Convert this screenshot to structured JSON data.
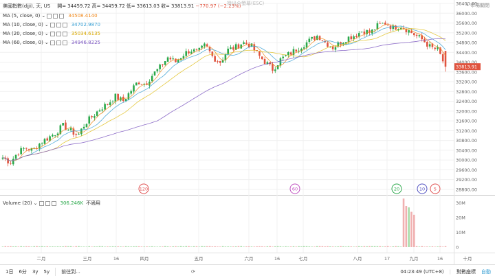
{
  "header": {
    "symbol": "美國指數(djji), 天, US",
    "open_label": "開=",
    "open": "34459.72",
    "high_label": "高=",
    "high": "34459.72",
    "low_label": "低=",
    "low": "33613.03",
    "close_label": "收=",
    "close": "33813.91",
    "change": "−770.97 (−2.23%)",
    "watermark": "撥出全螢幕(ESC)",
    "market_status": "• 市場關閉"
  },
  "ma": [
    {
      "label": "MA (5, close, 0)",
      "value": "34508.4140",
      "color": "#f0891d"
    },
    {
      "label": "MA (10, close, 0)",
      "value": "34702.9870",
      "color": "#3aa0d4"
    },
    {
      "label": "MA (20, close, 0)",
      "value": "35034.6135",
      "color": "#e0c020"
    },
    {
      "label": "MA (60, close, 0)",
      "value": "34946.8225",
      "color": "#7a55c0"
    }
  ],
  "volume": {
    "label": "Volume (20)",
    "value": "306.246K",
    "note": "不適用",
    "color": "#2aa84a"
  },
  "price_axis": [
    "36400.00",
    "36000.00",
    "35600.00",
    "35200.00",
    "34800.00",
    "34400.00",
    "34000.00",
    "33600.00",
    "33200.00",
    "32800.00",
    "32400.00",
    "32000.00",
    "31600.00",
    "31200.00",
    "30800.00",
    "30400.00",
    "30000.00",
    "29600.00",
    "29200.00",
    "28800.00"
  ],
  "last_price_label": "33813.91",
  "volume_axis": [
    "30M",
    "20M",
    "10M",
    "0"
  ],
  "time_axis": [
    "二月",
    "三月",
    "16",
    "四月",
    "五月",
    "六月",
    "16",
    "七月",
    "八月",
    "17",
    "九月",
    "16",
    "十月"
  ],
  "event_markers": [
    {
      "text": "120",
      "color": "#e05050"
    },
    {
      "text": "60",
      "color": "#c050c0"
    },
    {
      "text": "20",
      "color": "#2aa84a"
    },
    {
      "text": "10",
      "color": "#5050c0"
    },
    {
      "text": "5",
      "color": "#e05050"
    }
  ],
  "colors": {
    "up": "#2aa84a",
    "down": "#e0533e",
    "up_vol": "#a8dca8",
    "down_vol": "#f0b0b0",
    "grid": "#f0f0f0"
  },
  "chart_data": {
    "type": "candlestick",
    "title": "美國指數(djji), 天, US",
    "ylim": [
      28600,
      36400
    ],
    "x": [
      "二月",
      "三月",
      "16",
      "四月",
      "五月",
      "六月",
      "16",
      "七月",
      "八月",
      "17",
      "九月",
      "16",
      "十月"
    ],
    "close_series": [
      30100,
      29900,
      30300,
      30500,
      30400,
      30700,
      30900,
      31100,
      31400,
      31200,
      31000,
      31500,
      31800,
      32100,
      32300,
      32600,
      32400,
      32800,
      33200,
      33100,
      33500,
      33800,
      34200,
      34000,
      34300,
      34500,
      34400,
      34700,
      34200,
      34000,
      34500,
      34600,
      34800,
      34700,
      34300,
      34000,
      33700,
      34100,
      34300,
      34500,
      34700,
      34900,
      35100,
      34800,
      34600,
      34800,
      35000,
      35100,
      35300,
      35200,
      35500,
      35600,
      35400,
      35500,
      35300,
      35100,
      34900,
      34600,
      34500,
      33800
    ]
  },
  "bottom": {
    "ranges": [
      "1日",
      "6分",
      "3y",
      "5y"
    ],
    "goto": "前往到...",
    "time": "04:23:49 (UTC+8)",
    "scale": "對數座標",
    "auto": "自動"
  }
}
